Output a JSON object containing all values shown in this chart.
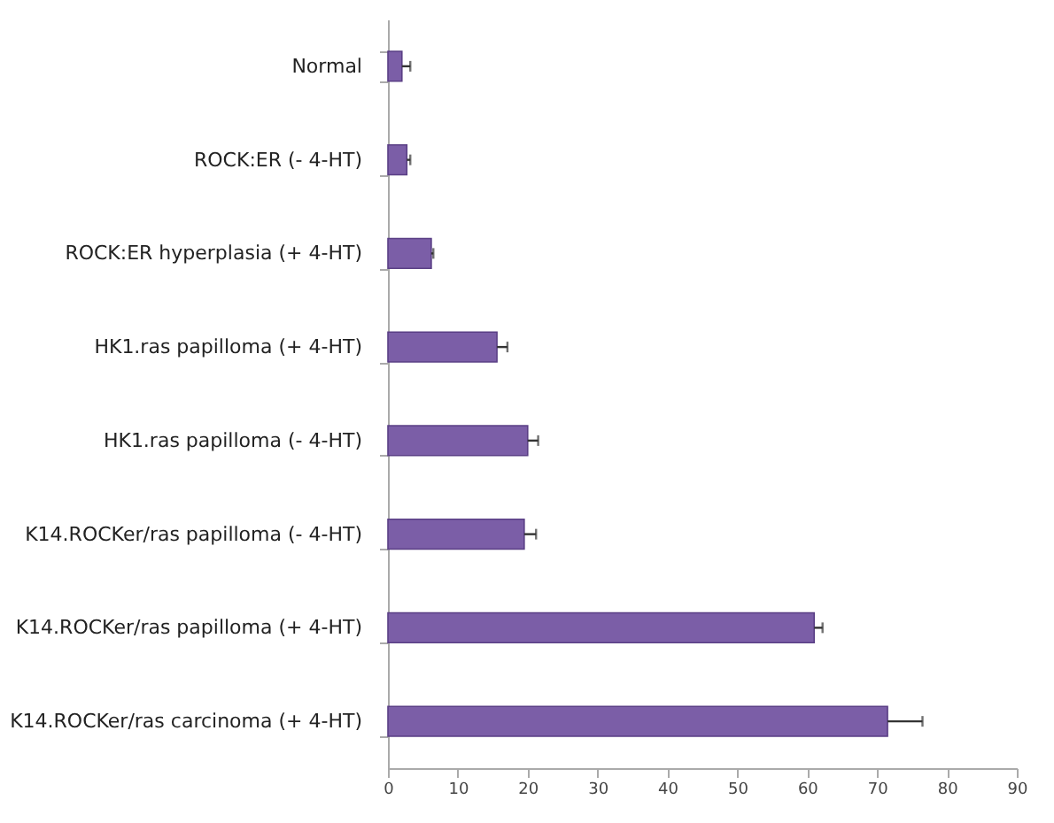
{
  "chart_data": {
    "type": "bar",
    "orientation": "horizontal",
    "categories": [
      "Normal",
      "ROCK:ER (- 4-HT)",
      "ROCK:ER hyperplasia (+ 4-HT)",
      "HK1.ras papilloma (+ 4-HT)",
      "HK1.ras papilloma (- 4-HT)",
      "K14.ROCKer/ras papilloma (- 4-HT)",
      "K14.ROCKer/ras papilloma (+ 4-HT)",
      "K14.ROCKer/ras carcinoma (+ 4-HT)"
    ],
    "values": [
      2,
      2.7,
      6.2,
      15.6,
      20,
      19.5,
      61,
      71.5
    ],
    "errors": [
      [
        2,
        3.2
      ],
      [
        2.7,
        3.2
      ],
      [
        6.2,
        6.5
      ],
      [
        15.6,
        17.1
      ],
      [
        20,
        21.5
      ],
      [
        19.5,
        21.2
      ],
      [
        61,
        62.2
      ],
      [
        71.5,
        76.5
      ]
    ],
    "color": "#7b5ea7",
    "xlim": [
      0,
      90
    ],
    "xticks": [
      0,
      10,
      20,
      30,
      40,
      50,
      60,
      70,
      80,
      90
    ],
    "grid": false
  }
}
